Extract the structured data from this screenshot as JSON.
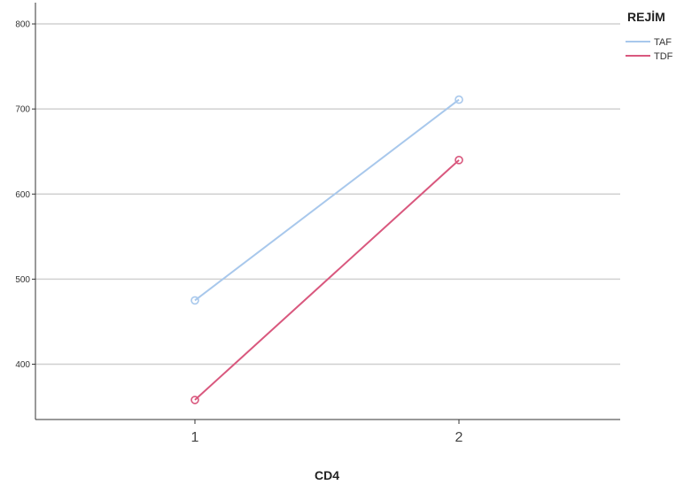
{
  "chart_data": {
    "type": "line",
    "title": "",
    "xlabel": "CD4",
    "ylabel": "",
    "categories": [
      "1",
      "2"
    ],
    "ylim": [
      335,
      825
    ],
    "yticks": [
      400,
      500,
      600,
      700,
      800
    ],
    "grid": "horizontal",
    "legend": {
      "title": "REJİM",
      "position": "top-right"
    },
    "series": [
      {
        "name": "TAF",
        "color": "#a8c8ec",
        "values": [
          475,
          711
        ]
      },
      {
        "name": "TDF",
        "color": "#d9587e",
        "values": [
          358,
          640
        ]
      }
    ]
  }
}
